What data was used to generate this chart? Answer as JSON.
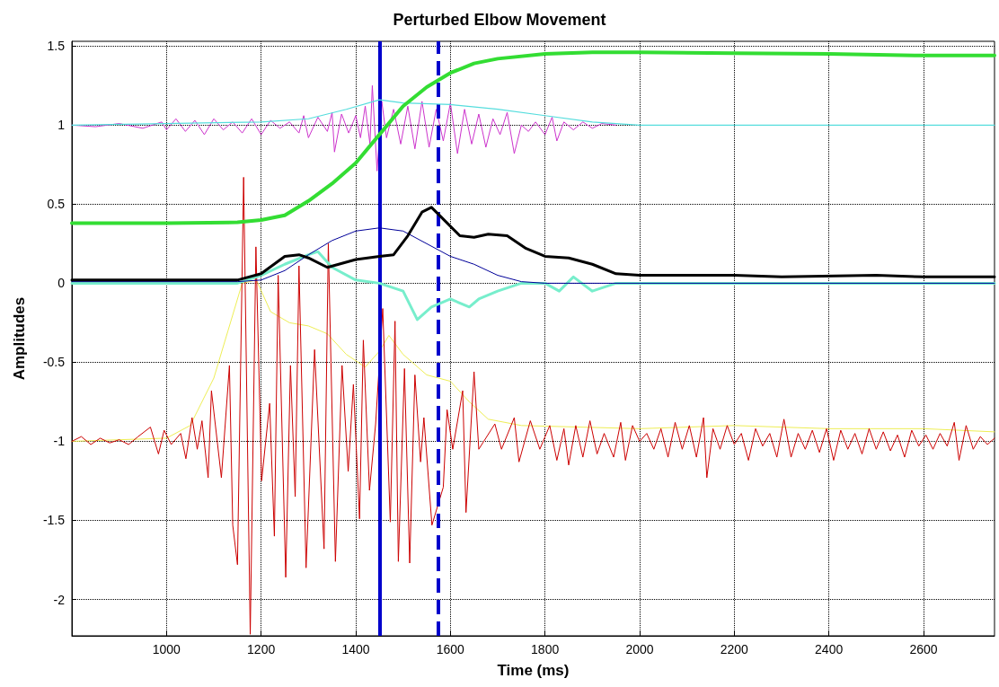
{
  "chart_data": {
    "type": "line",
    "title": "Perturbed Elbow Movement",
    "xlabel": "Time (ms)",
    "ylabel": "Amplitudes",
    "xlim": [
      800,
      2750
    ],
    "xticks": [
      1000,
      1200,
      1400,
      1600,
      1800,
      2000,
      2200,
      2400,
      2600
    ],
    "ylim": [
      -2.23,
      1.53
    ],
    "yticks": [
      -2,
      -1.5,
      -1,
      -0.5,
      0,
      0.5,
      1,
      1.5
    ],
    "grid": true,
    "marker": "none",
    "line_style": "solid",
    "ref_lines": [
      {
        "axis": "x",
        "value": 1450,
        "color": "#0000cc",
        "line_style": "solid"
      },
      {
        "axis": "x",
        "value": 1575,
        "color": "#0000cc",
        "line_style": "dashed"
      }
    ],
    "series": [
      {
        "color": "#eeee55",
        "x": [
          800,
          1000,
          1050,
          1100,
          1130,
          1160,
          1190,
          1220,
          1260,
          1300,
          1340,
          1380,
          1420,
          1450,
          1470,
          1500,
          1550,
          1600,
          1640,
          1680,
          1750,
          2000,
          2200,
          2400,
          2600,
          2750
        ],
        "values": [
          -1.0,
          -0.98,
          -0.9,
          -0.6,
          -0.3,
          0.0,
          0.02,
          -0.18,
          -0.25,
          -0.27,
          -0.32,
          -0.45,
          -0.53,
          -0.43,
          -0.33,
          -0.45,
          -0.58,
          -0.62,
          -0.75,
          -0.86,
          -0.9,
          -0.92,
          -0.9,
          -0.92,
          -0.92,
          -0.94
        ]
      },
      {
        "color": "#cc0000",
        "x": [
          800,
          820,
          840,
          860,
          880,
          900,
          920,
          940,
          966,
          983,
          995,
          1010,
          1030,
          1041,
          1054,
          1065,
          1075,
          1088,
          1095,
          1116,
          1133,
          1140,
          1150,
          1163,
          1177,
          1189,
          1201,
          1218,
          1228,
          1236,
          1252,
          1262,
          1272,
          1280,
          1295,
          1313,
          1333,
          1342,
          1357,
          1371,
          1384,
          1395,
          1408,
          1416,
          1429,
          1442,
          1457,
          1473,
          1483,
          1490,
          1503,
          1514,
          1525,
          1537,
          1544,
          1561,
          1585,
          1593,
          1605,
          1626,
          1633,
          1650,
          1660,
          1694,
          1708,
          1735,
          1745,
          1769,
          1789,
          1810,
          1825,
          1840,
          1850,
          1865,
          1880,
          1895,
          1910,
          1925,
          1945,
          1960,
          1970,
          1985,
          2000,
          2015,
          2030,
          2045,
          2060,
          2075,
          2090,
          2105,
          2120,
          2135,
          2142,
          2155,
          2170,
          2185,
          2200,
          2215,
          2230,
          2245,
          2260,
          2275,
          2290,
          2305,
          2320,
          2335,
          2350,
          2365,
          2380,
          2395,
          2410,
          2425,
          2440,
          2455,
          2470,
          2485,
          2500,
          2515,
          2530,
          2545,
          2560,
          2575,
          2590,
          2605,
          2620,
          2635,
          2650,
          2665,
          2675,
          2690,
          2705,
          2720,
          2735,
          2750
        ],
        "values": [
          -1.0,
          -0.97,
          -1.02,
          -0.98,
          -1.01,
          -0.99,
          -1.02,
          -0.97,
          -0.91,
          -1.08,
          -0.93,
          -1.02,
          -0.95,
          -1.11,
          -0.85,
          -1.05,
          -0.87,
          -1.23,
          -0.68,
          -1.23,
          -0.52,
          -1.53,
          -1.78,
          0.67,
          -2.22,
          0.23,
          -1.25,
          -0.76,
          -1.6,
          0.05,
          -1.86,
          -0.52,
          -1.35,
          0.11,
          -1.8,
          -0.42,
          -1.68,
          0.25,
          -1.76,
          -0.52,
          -1.19,
          -0.64,
          -1.49,
          -0.36,
          -1.31,
          -0.89,
          -0.16,
          -1.51,
          -0.24,
          -1.76,
          -0.54,
          -1.77,
          -0.58,
          -1.13,
          -0.85,
          -1.53,
          -1.29,
          -0.8,
          -1.05,
          -0.68,
          -1.45,
          -0.56,
          -1.05,
          -0.89,
          -1.05,
          -0.85,
          -1.13,
          -0.87,
          -1.05,
          -0.9,
          -1.12,
          -0.92,
          -1.15,
          -0.9,
          -1.1,
          -0.87,
          -1.08,
          -0.95,
          -1.1,
          -0.88,
          -1.12,
          -0.9,
          -1.0,
          -0.95,
          -1.05,
          -0.92,
          -1.1,
          -0.88,
          -1.05,
          -0.9,
          -1.1,
          -0.85,
          -1.23,
          -0.92,
          -1.05,
          -0.9,
          -1.02,
          -0.95,
          -1.12,
          -0.92,
          -1.03,
          -0.95,
          -1.1,
          -0.86,
          -1.1,
          -0.95,
          -1.05,
          -0.93,
          -1.07,
          -0.92,
          -1.12,
          -0.93,
          -1.05,
          -0.95,
          -1.08,
          -0.92,
          -1.05,
          -0.94,
          -1.06,
          -0.96,
          -1.1,
          -0.93,
          -1.03,
          -0.96,
          -1.05,
          -0.95,
          -1.03,
          -0.88,
          -1.12,
          -0.9,
          -1.05,
          -0.97,
          -1.02,
          -0.98
        ]
      },
      {
        "color": "#cc33cc",
        "x": [
          800,
          850,
          900,
          950,
          990,
          1000,
          1020,
          1040,
          1060,
          1080,
          1100,
          1120,
          1140,
          1160,
          1180,
          1200,
          1220,
          1240,
          1260,
          1280,
          1290,
          1300,
          1320,
          1340,
          1350,
          1355,
          1370,
          1385,
          1400,
          1410,
          1420,
          1430,
          1435,
          1445,
          1455,
          1465,
          1480,
          1495,
          1510,
          1525,
          1540,
          1555,
          1570,
          1585,
          1600,
          1615,
          1630,
          1645,
          1660,
          1675,
          1690,
          1705,
          1720,
          1735,
          1750,
          1765,
          1780,
          1800,
          1815,
          1825,
          1840,
          1860,
          1880,
          1900,
          1920,
          1950
        ],
        "values": [
          1.0,
          0.99,
          1.01,
          0.98,
          1.02,
          0.97,
          1.04,
          0.96,
          1.03,
          0.94,
          1.04,
          0.97,
          1.02,
          0.95,
          1.04,
          0.94,
          1.03,
          0.98,
          1.02,
          0.95,
          1.06,
          0.92,
          1.05,
          0.96,
          1.08,
          0.83,
          1.07,
          0.95,
          1.06,
          0.92,
          1.12,
          0.88,
          1.25,
          0.71,
          1.15,
          0.92,
          1.1,
          0.88,
          1.12,
          0.85,
          1.15,
          0.86,
          1.1,
          0.9,
          1.14,
          0.82,
          1.1,
          0.88,
          1.07,
          0.86,
          1.04,
          0.94,
          1.08,
          0.82,
          1.0,
          0.96,
          1.02,
          0.94,
          1.05,
          0.9,
          1.02,
          0.97,
          1.02,
          0.98,
          1.01,
          1.0
        ]
      },
      {
        "color": "#55dddd",
        "x": [
          800,
          1200,
          1300,
          1380,
          1450,
          1500,
          1600,
          1700,
          1800,
          1900,
          2000,
          2750
        ],
        "values": [
          1.0,
          1.02,
          1.04,
          1.1,
          1.16,
          1.14,
          1.13,
          1.1,
          1.06,
          1.02,
          1.0,
          1.0
        ]
      },
      {
        "color": "#77eecc",
        "x": [
          800,
          1150,
          1200,
          1250,
          1300,
          1320,
          1350,
          1400,
          1450,
          1500,
          1530,
          1560,
          1600,
          1640,
          1660,
          1700,
          1750,
          1800,
          1830,
          1860,
          1900,
          1950,
          2400,
          2750
        ],
        "values": [
          0.0,
          0.0,
          0.05,
          0.12,
          0.18,
          0.2,
          0.1,
          0.02,
          0.0,
          -0.05,
          -0.23,
          -0.15,
          -0.1,
          -0.15,
          -0.1,
          -0.05,
          0.0,
          0.0,
          -0.05,
          0.04,
          -0.05,
          0.0,
          0.0,
          0.0
        ]
      },
      {
        "color": "#000099",
        "x": [
          800,
          1150,
          1200,
          1250,
          1300,
          1350,
          1400,
          1450,
          1500,
          1550,
          1600,
          1650,
          1700,
          1750,
          1800,
          2750
        ],
        "values": [
          0.01,
          0.01,
          0.02,
          0.08,
          0.18,
          0.27,
          0.33,
          0.35,
          0.33,
          0.25,
          0.17,
          0.12,
          0.05,
          0.01,
          0.0,
          0.0
        ]
      },
      {
        "color": "#000000",
        "x": [
          800,
          1150,
          1200,
          1250,
          1280,
          1300,
          1340,
          1400,
          1450,
          1480,
          1510,
          1540,
          1560,
          1580,
          1620,
          1650,
          1680,
          1720,
          1760,
          1800,
          1850,
          1900,
          1950,
          2000,
          2200,
          2300,
          2500,
          2600,
          2750
        ],
        "values": [
          0.02,
          0.02,
          0.06,
          0.17,
          0.18,
          0.16,
          0.1,
          0.15,
          0.17,
          0.18,
          0.3,
          0.45,
          0.48,
          0.42,
          0.3,
          0.29,
          0.31,
          0.3,
          0.22,
          0.17,
          0.16,
          0.12,
          0.06,
          0.05,
          0.05,
          0.04,
          0.05,
          0.04,
          0.04
        ]
      },
      {
        "color": "#33dd33",
        "x": [
          800,
          1000,
          1150,
          1200,
          1250,
          1300,
          1350,
          1400,
          1450,
          1500,
          1550,
          1600,
          1650,
          1700,
          1800,
          1900,
          2000,
          2200,
          2400,
          2600,
          2750
        ],
        "values": [
          0.38,
          0.38,
          0.385,
          0.4,
          0.43,
          0.52,
          0.63,
          0.76,
          0.94,
          1.12,
          1.24,
          1.33,
          1.39,
          1.42,
          1.45,
          1.46,
          1.46,
          1.455,
          1.45,
          1.44,
          1.44
        ]
      }
    ]
  }
}
